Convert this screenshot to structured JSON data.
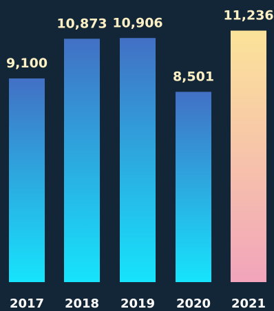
{
  "chart_data": {
    "type": "bar",
    "categories": [
      "2017",
      "2018",
      "2019",
      "2020",
      "2021"
    ],
    "values": [
      9100,
      10873,
      10906,
      8501,
      11236
    ],
    "value_labels": [
      "9,100",
      "10,873",
      "10,906",
      "8,501",
      "11,236"
    ],
    "highlight_index": 4,
    "title": "",
    "xlabel": "",
    "ylabel": "",
    "grid": false,
    "legend": "none"
  },
  "colors": {
    "background": "#132637",
    "bar_gradient_top": "#4270c4",
    "bar_gradient_bottom": "#16e4fc",
    "highlight_gradient_top": "#fbe399",
    "highlight_gradient_bottom": "#f2a4bb",
    "value_label": "#fdf0c4",
    "tick_label": "#ffffff"
  }
}
